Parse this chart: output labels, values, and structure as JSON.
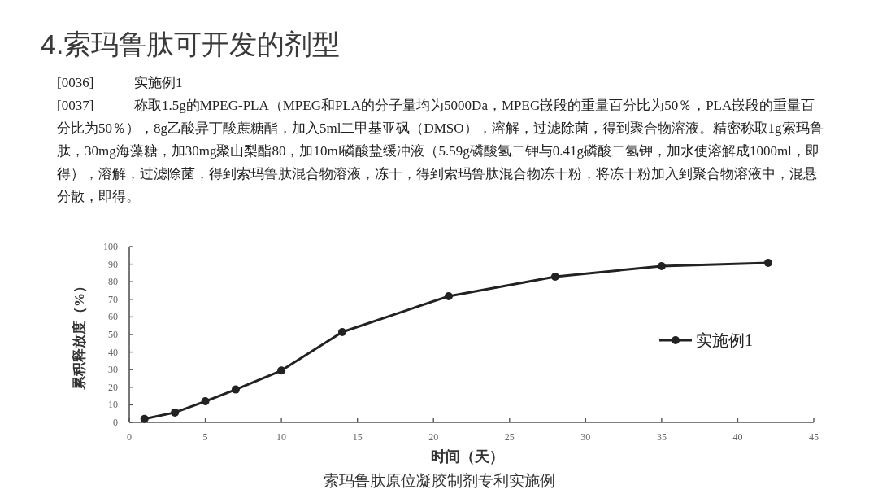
{
  "chart_data": {
    "type": "line",
    "title": "4.索玛鲁肽可开发的剂型",
    "annotations": [
      "[0036] 实施例1",
      "[0037] 称取1.5g的MPEG-PLA（MPEG和PLA的分子量均为5000Da，MPEG嵌段的重量百分比为50％，PLA嵌段的重量百分比为50％），8g乙酸异丁酸蔗糖酯，加入5ml二甲基亚砜（DMSO），溶解，过滤除菌，得到聚合物溶液。精密称取1g索玛鲁肽，30mg海藻糖，加30mg聚山梨酯80，加10ml磷酸盐缓冲液（5.59g磷酸氢二钾与0.41g磷酸二氢钾，加水使溶解成1000ml，即得），溶解，过滤除菌，得到索玛鲁肽混合物溶液，冻干，得到索玛鲁肽混合物冻干粉，将冻干粉加入到聚合物溶液中，混悬分散，即得。",
      "索玛鲁肽原位凝胶制剂专利实施例"
    ],
    "xlabel": "时间（天）",
    "ylabel": "累积释放度（%）",
    "x": [
      1,
      3,
      5,
      7,
      10,
      14,
      21,
      28,
      35,
      42
    ],
    "series": [
      {
        "name": "实施例1",
        "color": "#222222",
        "values": [
          2.0,
          5.6,
          12.0,
          18.7,
          29.5,
          51.4,
          71.8,
          82.9,
          88.9,
          90.7
        ]
      }
    ],
    "xlim": [
      0,
      45
    ],
    "ylim": [
      0,
      100
    ],
    "xticks": [
      0,
      5,
      10,
      15,
      20,
      25,
      30,
      35,
      40,
      45
    ],
    "yticks": [
      0,
      10,
      20,
      30,
      40,
      50,
      60,
      70,
      80,
      90,
      100
    ],
    "legend": "right",
    "marker": "circle",
    "line_style": "solid",
    "grid": false
  }
}
